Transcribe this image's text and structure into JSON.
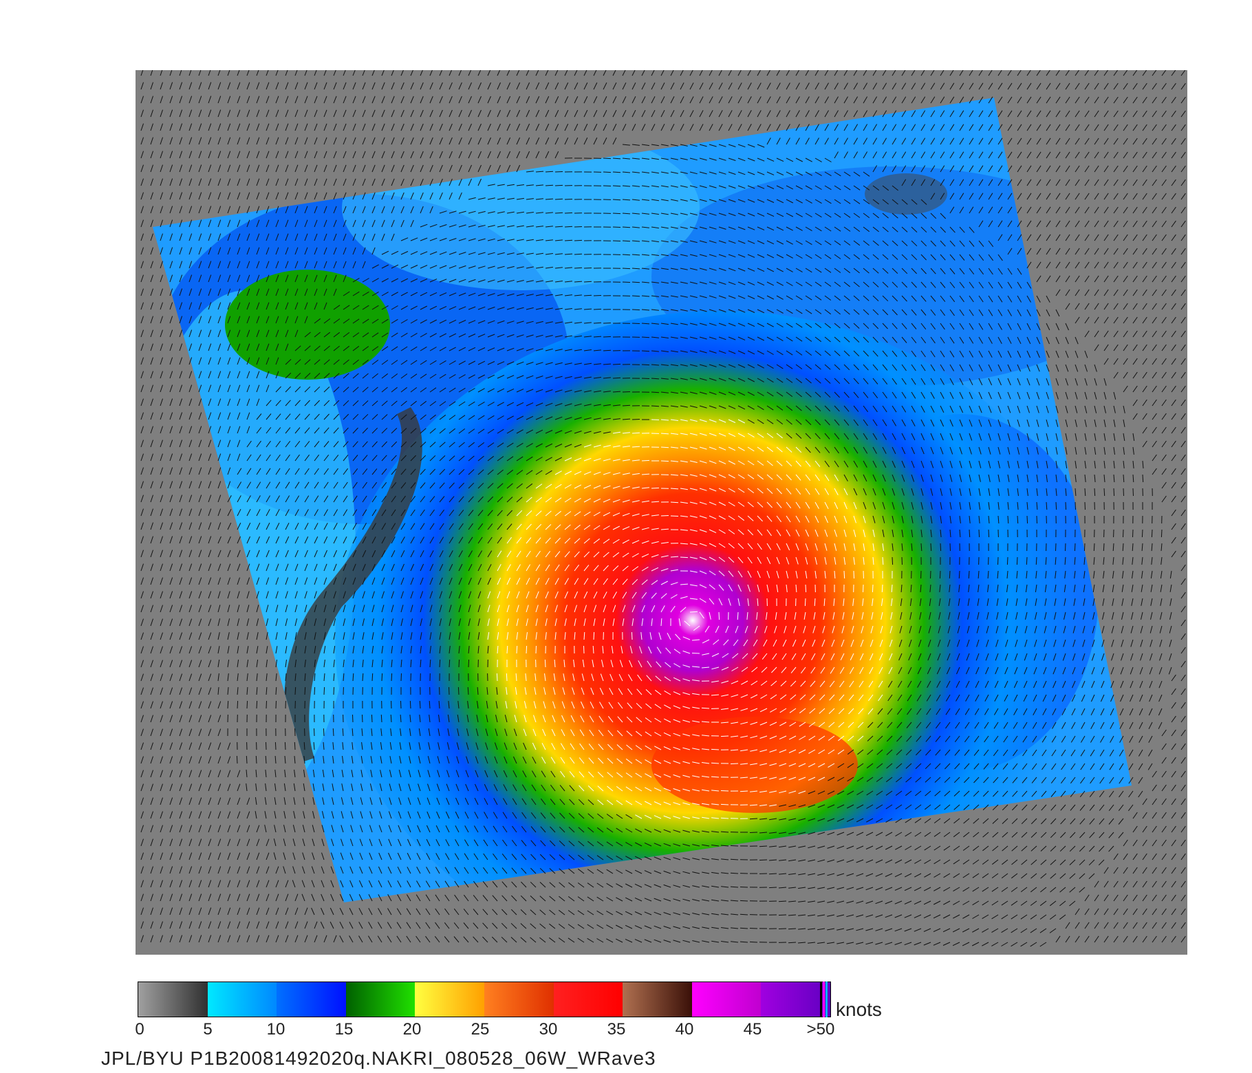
{
  "colorbar": {
    "units": "knots",
    "tick_labels": [
      "0",
      "5",
      "10",
      "15",
      "20",
      "25",
      "30",
      "35",
      "40",
      "45",
      ">50"
    ],
    "segments": [
      {
        "from": "#a0a0a0",
        "to": "#303030"
      },
      {
        "from": "#00e8ff",
        "to": "#0088ff"
      },
      {
        "from": "#0070ff",
        "to": "#0010ff"
      },
      {
        "from": "#006000",
        "to": "#20e000"
      },
      {
        "from": "#ffff40",
        "to": "#ffa000"
      },
      {
        "from": "#ff8020",
        "to": "#e03000"
      },
      {
        "from": "#ff2020",
        "to": "#ff0000"
      },
      {
        "from": "#b07050",
        "to": "#3a1008"
      },
      {
        "from": "#ff00ff",
        "to": "#c000d0"
      },
      {
        "from": "#a000e0",
        "to": "#6000c0"
      }
    ]
  },
  "caption": "JPL/BYU  P1B20081492020q.NAKRI_080528_06W_WRave3"
}
